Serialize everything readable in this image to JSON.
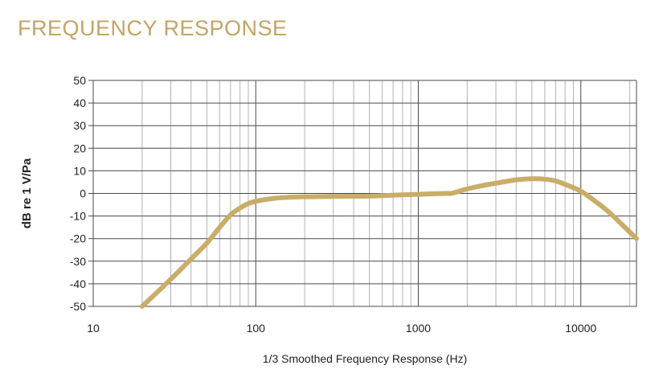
{
  "page": {
    "title": "FREQUENCY RESPONSE"
  },
  "colors": {
    "title": "#c2a565",
    "curve": "#c9ad68",
    "grid_major": "#4a4a4a",
    "grid_minor": "#b4b4b4",
    "axis_text": "#222222"
  },
  "chart_data": {
    "type": "line",
    "title": "",
    "xlabel": "1/3 Smoothed Frequency Response (Hz)",
    "ylabel": "dB re 1 V/Pa",
    "xscale": "log",
    "xlim": [
      10,
      22000
    ],
    "ylim": [
      -50,
      50
    ],
    "x_ticks": [
      10,
      100,
      1000,
      10000
    ],
    "x_tick_labels": [
      "10",
      "100",
      "1000",
      "10000"
    ],
    "y_ticks": [
      50,
      40,
      30,
      20,
      10,
      0,
      -10,
      -20,
      -30,
      -40,
      -50
    ],
    "y_tick_labels": [
      "50",
      "40",
      "30",
      "20",
      "10",
      "0",
      "-10",
      "-20",
      "-30",
      "-40",
      "-50"
    ],
    "grid": true,
    "legend": "none",
    "series": [
      {
        "x": [
          20,
          30,
          40,
          50,
          60,
          70,
          80,
          90,
          100,
          120,
          150,
          200,
          300,
          500,
          700,
          1000,
          1500,
          1600,
          2000,
          2500,
          3000,
          4000,
          5000,
          6000,
          7000,
          8000,
          10000,
          12000,
          15000,
          22000
        ],
        "y": [
          -50,
          -38,
          -29,
          -22,
          -15,
          -9.5,
          -6.5,
          -4.5,
          -3.5,
          -2.5,
          -1.8,
          -1.5,
          -1.3,
          -1.2,
          -0.8,
          -0.4,
          0,
          0,
          2,
          3.5,
          4.5,
          6,
          6.5,
          6.3,
          5.5,
          4,
          1,
          -3,
          -8.5,
          -20
        ]
      }
    ]
  }
}
